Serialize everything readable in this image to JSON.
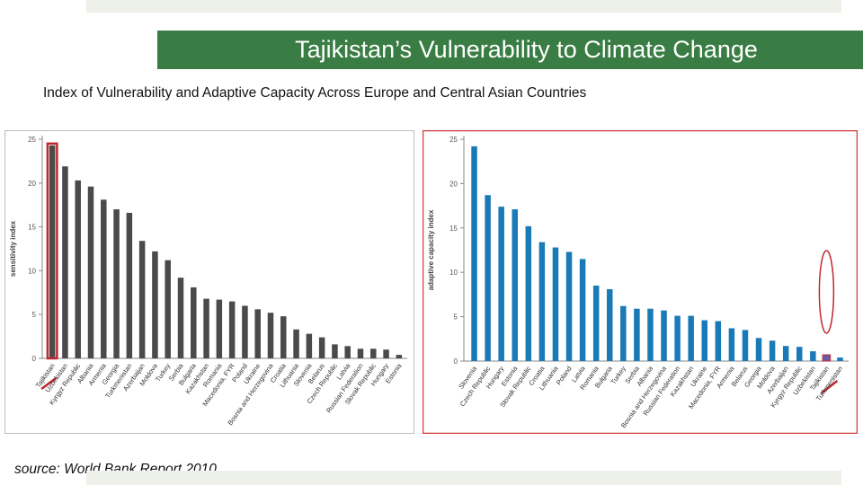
{
  "slide": {
    "title": "Tajikistan’s Vulnerability to Climate Change",
    "subtitle": "Index of Vulnerability and Adaptive Capacity Across Europe and Central Asian Countries",
    "source": "source: World Bank Report 2010",
    "colors": {
      "title_bar": "#3a7d44",
      "highlight": "#c0282f"
    }
  },
  "chart_data": [
    {
      "type": "bar",
      "ylabel": "sensitivity index",
      "ylim": [
        0,
        25
      ],
      "yticks": [
        "0",
        "5",
        "10",
        "15",
        "20",
        "25"
      ],
      "grid": false,
      "bar_color": "#4a4a4a",
      "highlighted_category": "Tajikistan",
      "highlight_color": "#c0282f",
      "categories": [
        "Tajikistan",
        "Uzbekistan",
        "Kyrgyz Republic",
        "Albania",
        "Armenia",
        "Georgia",
        "Turkmenistan",
        "Azerbaijan",
        "Moldova",
        "Turkey",
        "Serbia",
        "Bulgaria",
        "Kazakhstan",
        "Romania",
        "Macedonia, FYR",
        "Poland",
        "Ukraine",
        "Bosnia and Herzegovina",
        "Croatia",
        "Lithuania",
        "Slovenia",
        "Belarus",
        "Czech Republic",
        "Latvia",
        "Russian Federation",
        "Slovak Republic",
        "Hungary",
        "Estonia"
      ],
      "values": [
        24.3,
        21.9,
        20.3,
        19.6,
        18.1,
        17.0,
        16.6,
        13.4,
        12.2,
        11.2,
        9.2,
        8.1,
        6.8,
        6.7,
        6.5,
        6.0,
        5.6,
        5.2,
        4.8,
        3.3,
        2.8,
        2.4,
        1.6,
        1.4,
        1.1,
        1.1,
        1.0,
        0.4
      ]
    },
    {
      "type": "bar",
      "ylabel": "adaptive capacity index",
      "ylim": [
        0,
        25
      ],
      "yticks": [
        "0",
        "5",
        "10",
        "15",
        "20",
        "25"
      ],
      "grid": false,
      "bar_color": "#1a7ab8",
      "highlighted_category": "Tajikistan",
      "highlight_color": "#c0282f",
      "categories": [
        "Slovenia",
        "Czech Republic",
        "Hungary",
        "Estonia",
        "Slovak Republic",
        "Croatia",
        "Lithuania",
        "Poland",
        "Latvia",
        "Romania",
        "Bulgaria",
        "Turkey",
        "Serbia",
        "Albania",
        "Bosnia and Herzegovina",
        "Russian Federation",
        "Kazakhstan",
        "Ukraine",
        "Macedonia, FYR",
        "Armenia",
        "Belarus",
        "Georgia",
        "Moldova",
        "Azerbaijan",
        "Kyrgyz Republic",
        "Uzbekistan",
        "Tajikistan",
        "Turkmenistan"
      ],
      "values": [
        24.2,
        18.7,
        17.4,
        17.1,
        15.2,
        13.4,
        12.8,
        12.3,
        11.5,
        8.5,
        8.1,
        6.2,
        5.9,
        5.9,
        5.7,
        5.1,
        5.1,
        4.6,
        4.5,
        3.7,
        3.5,
        2.6,
        2.3,
        1.7,
        1.6,
        1.1,
        0.5,
        0.4
      ]
    }
  ]
}
